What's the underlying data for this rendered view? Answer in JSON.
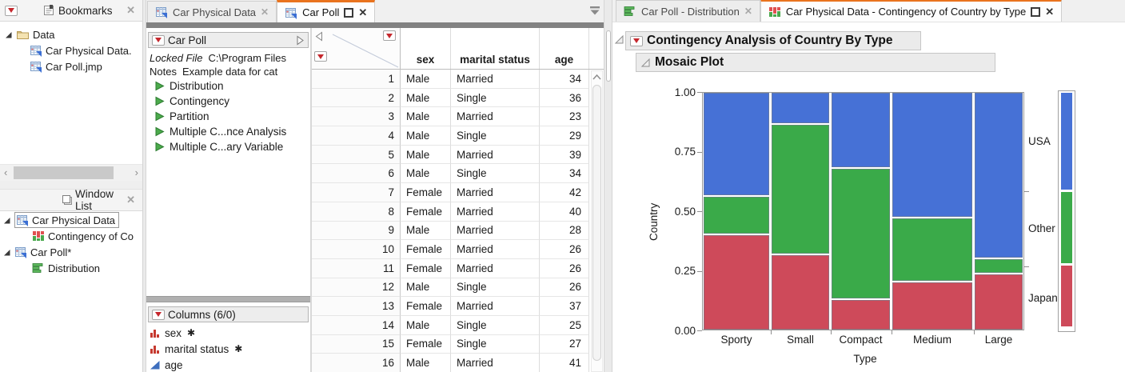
{
  "left": {
    "bookmarks": {
      "title": "Bookmarks",
      "folder": "Data",
      "files": [
        "Car Physical Data.",
        "Car Poll.jmp"
      ]
    },
    "window_list": {
      "title": "Window List",
      "entries": [
        {
          "label": "Car Physical Data",
          "child": "Contingency of Co"
        },
        {
          "label": "Car Poll*",
          "child": "Distribution"
        }
      ]
    }
  },
  "center_tabs": {
    "tab1": "Car Physical Data",
    "tab2": "Car Poll"
  },
  "table_panel": {
    "title": "Car Poll",
    "locked_label": "Locked File",
    "locked_value": "C:\\Program Files",
    "notes_label": "Notes",
    "notes_value": "Example data for cat",
    "scripts": [
      "Distribution",
      "Contingency",
      "Partition",
      "Multiple C...nce Analysis",
      "Multiple C...ary Variable"
    ],
    "columns_header": "Columns (6/0)",
    "asterisk": "✱",
    "columns": [
      {
        "name": "sex",
        "type": "nominal",
        "modeled": true
      },
      {
        "name": "marital status",
        "type": "nominal",
        "modeled": true
      },
      {
        "name": "age",
        "type": "continuous",
        "modeled": false
      }
    ]
  },
  "data_grid": {
    "headers": [
      "sex",
      "marital status",
      "age"
    ],
    "rows": [
      [
        1,
        "Male",
        "Married",
        34
      ],
      [
        2,
        "Male",
        "Single",
        36
      ],
      [
        3,
        "Male",
        "Married",
        23
      ],
      [
        4,
        "Male",
        "Single",
        29
      ],
      [
        5,
        "Male",
        "Married",
        39
      ],
      [
        6,
        "Male",
        "Single",
        34
      ],
      [
        7,
        "Female",
        "Married",
        42
      ],
      [
        8,
        "Female",
        "Married",
        40
      ],
      [
        9,
        "Male",
        "Married",
        28
      ],
      [
        10,
        "Female",
        "Married",
        26
      ],
      [
        11,
        "Female",
        "Married",
        26
      ],
      [
        12,
        "Male",
        "Single",
        26
      ],
      [
        13,
        "Female",
        "Married",
        37
      ],
      [
        14,
        "Male",
        "Single",
        25
      ],
      [
        15,
        "Female",
        "Single",
        27
      ],
      [
        16,
        "Male",
        "Married",
        41
      ]
    ]
  },
  "right_tabs": {
    "tab1": "Car Poll - Distribution",
    "tab2": "Car Physical Data - Contingency of Country by Type"
  },
  "report": {
    "title": "Contingency Analysis of Country By Type",
    "section": "Mosaic Plot"
  },
  "chart_data": {
    "type": "mosaic",
    "title": "Mosaic Plot",
    "xlabel": "Type",
    "ylabel": "Country",
    "categories": [
      "Sporty",
      "Small",
      "Compact",
      "Medium",
      "Large"
    ],
    "category_width_proportions": [
      0.212,
      0.185,
      0.188,
      0.258,
      0.155
    ],
    "stack_order_bottom_to_top": [
      "Japan",
      "Other",
      "USA"
    ],
    "proportions": {
      "Sporty": {
        "Japan": 0.4,
        "Other": 0.16,
        "USA": 0.44
      },
      "Small": {
        "Japan": 0.315,
        "Other": 0.55,
        "USA": 0.135
      },
      "Compact": {
        "Japan": 0.125,
        "Other": 0.555,
        "USA": 0.32
      },
      "Medium": {
        "Japan": 0.198,
        "Other": 0.272,
        "USA": 0.53
      },
      "Large": {
        "Japan": 0.232,
        "Other": 0.066,
        "USA": 0.702
      }
    },
    "legend_marginal_proportions": {
      "Japan": 0.27,
      "Other": 0.315,
      "USA": 0.415
    },
    "right_labels_top_to_bottom": [
      "USA",
      "Other",
      "Japan"
    ],
    "y_ticks": [
      "0.00",
      "0.25",
      "0.50",
      "0.75",
      "1.00"
    ],
    "y_range": [
      0,
      1
    ],
    "grid": false,
    "colors": {
      "USA": "#4671D6",
      "Other": "#3AAA49",
      "Japan": "#CE4A5A"
    }
  }
}
